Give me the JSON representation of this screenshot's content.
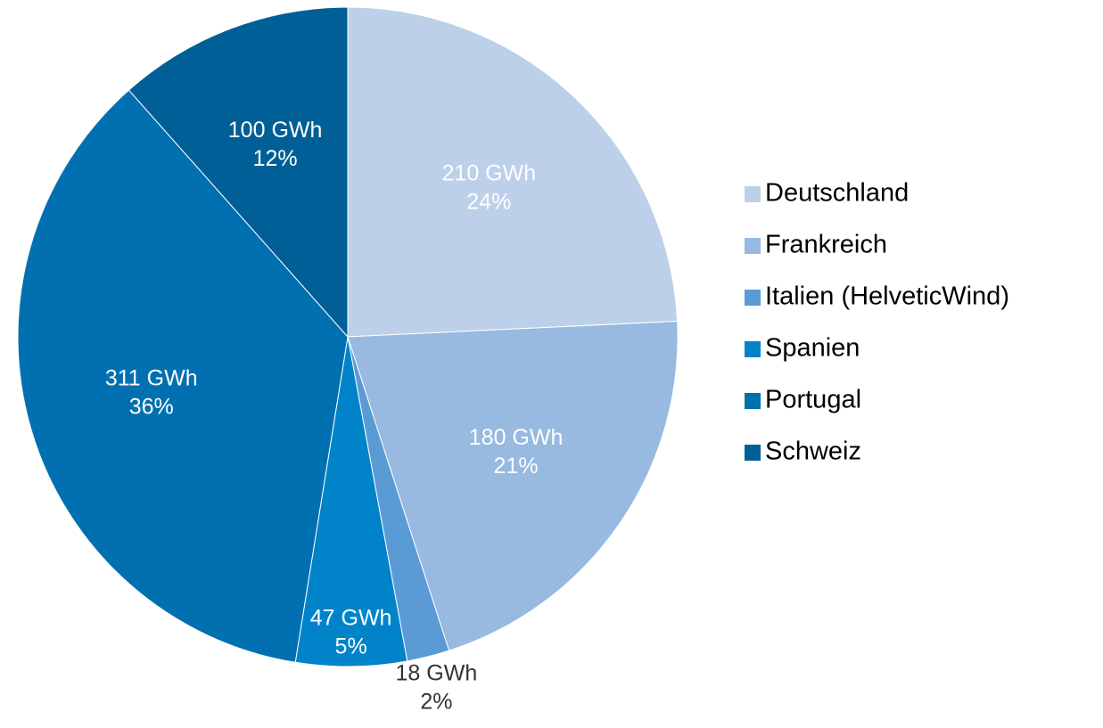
{
  "chart_data": {
    "type": "pie",
    "categories": [
      "Deutschland",
      "Frankreich",
      "Italien (HelveticWind)",
      "Spanien",
      "Portugal",
      "Schweiz"
    ],
    "values": [
      210,
      180,
      18,
      47,
      311,
      100
    ],
    "value_labels": [
      "210 GWh",
      "180 GWh",
      "18 GWh",
      "47 GWh",
      "311 GWh",
      "100 GWh"
    ],
    "percent_labels": [
      "24%",
      "21%",
      "2%",
      "5%",
      "36%",
      "12%"
    ],
    "colors": [
      "#bdd0e9",
      "#98b9e0",
      "#5b9bd5",
      "#0083c9",
      "#0070b0",
      "#005f96"
    ],
    "legend": "right"
  }
}
